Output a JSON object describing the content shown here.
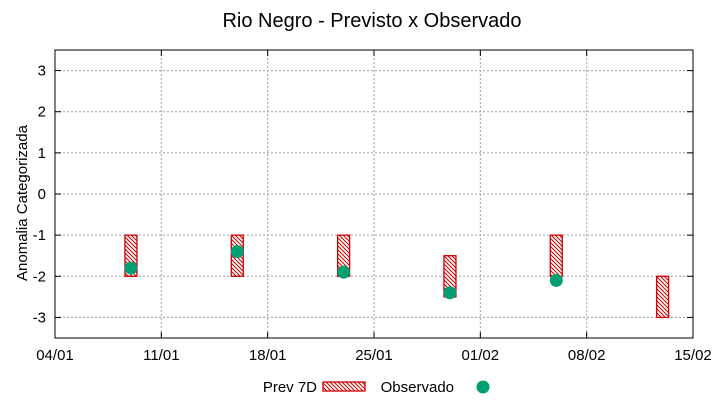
{
  "chart_data": {
    "type": "range-bar-scatter",
    "title": "Rio Negro - Previsto x Observado",
    "xlabel": "",
    "ylabel": "Anomalia Categorizada",
    "x_ticks": [
      "04/01",
      "11/01",
      "18/01",
      "25/01",
      "01/02",
      "08/02",
      "15/02"
    ],
    "x_range_days": [
      0,
      42
    ],
    "ylim": [
      -3.5,
      3.5
    ],
    "y_ticks": [
      3,
      2,
      1,
      0,
      -1,
      -2,
      -3
    ],
    "grid": true,
    "legend_position": "bottom",
    "series": [
      {
        "name": "Prev 7D",
        "kind": "range-bar",
        "color": "#cc0000",
        "points": [
          {
            "day": 5,
            "low": -2,
            "high": -1
          },
          {
            "day": 12,
            "low": -2,
            "high": -1
          },
          {
            "day": 19,
            "low": -2,
            "high": -1
          },
          {
            "day": 26,
            "low": -2.5,
            "high": -1.5
          },
          {
            "day": 33,
            "low": -2,
            "high": -1
          },
          {
            "day": 40,
            "low": -3,
            "high": -2
          }
        ]
      },
      {
        "name": "Observado",
        "kind": "scatter",
        "color": "#009e73",
        "points": [
          {
            "day": 5,
            "value": -1.8
          },
          {
            "day": 12,
            "value": -1.4
          },
          {
            "day": 19,
            "value": -1.9
          },
          {
            "day": 26,
            "value": -2.4
          },
          {
            "day": 33,
            "value": -2.1
          }
        ]
      }
    ]
  }
}
